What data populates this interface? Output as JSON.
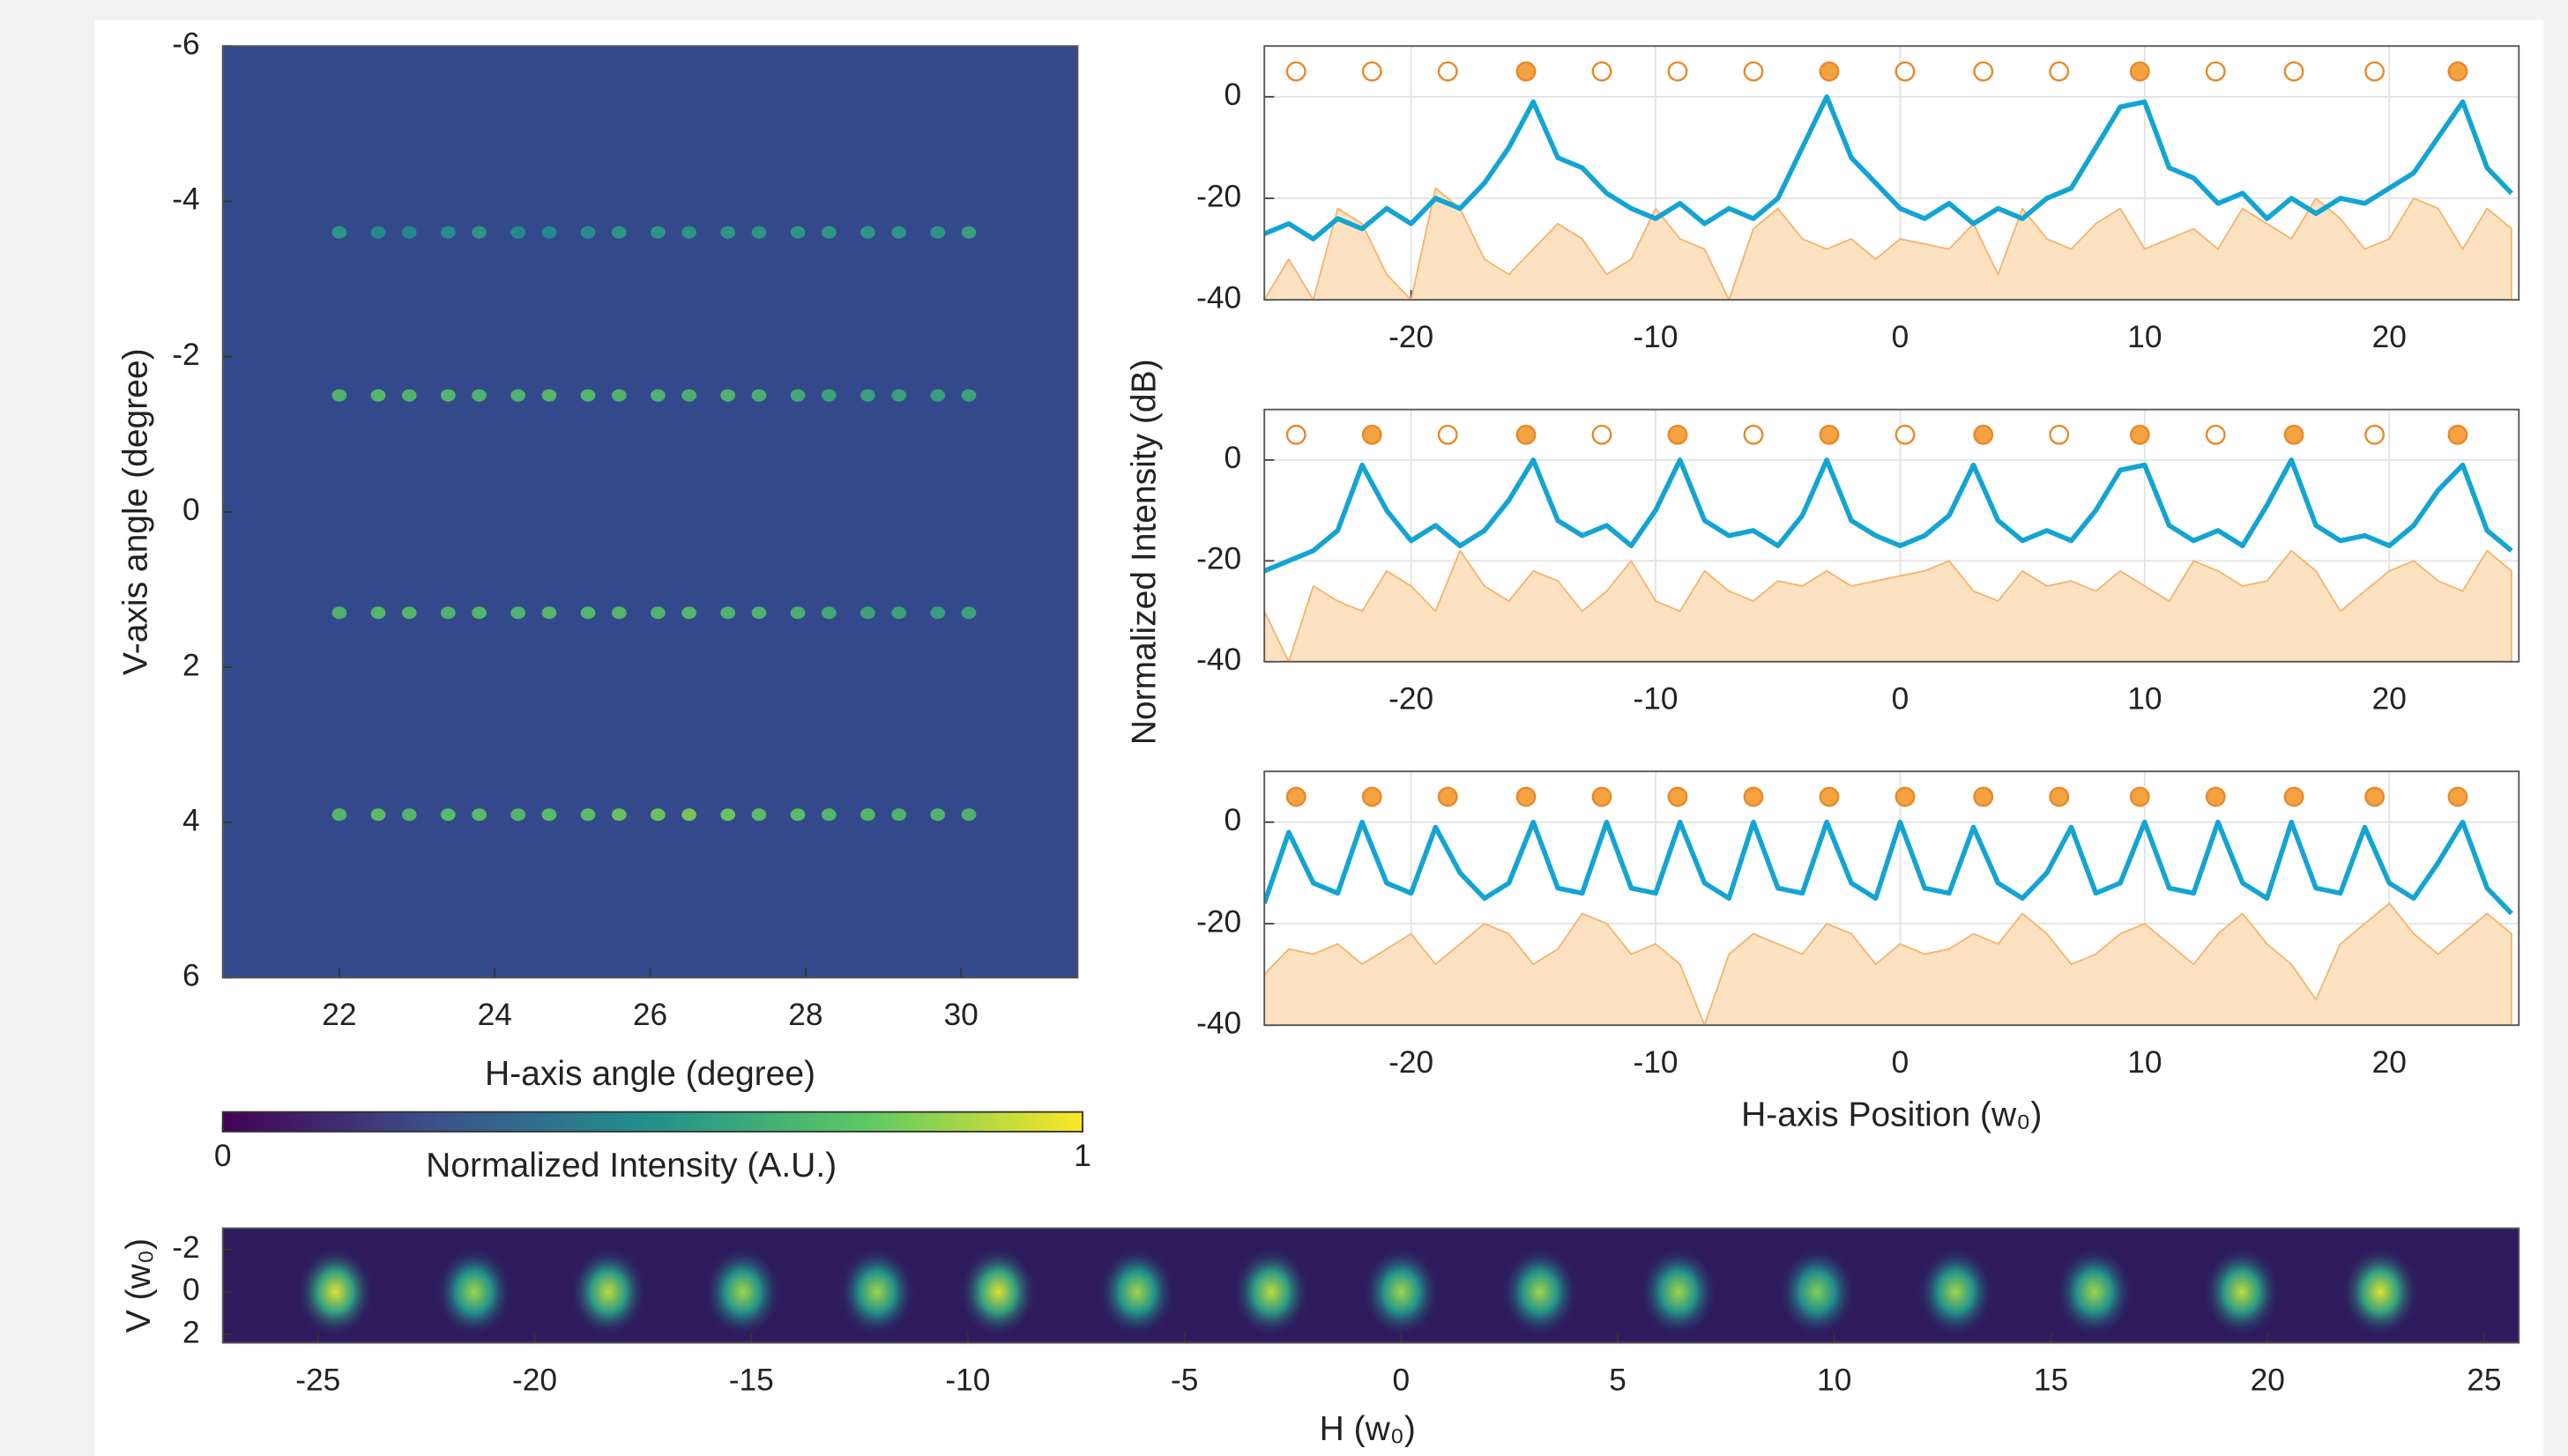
{
  "chart_data": [
    {
      "type": "heatmap",
      "xlabel": "H-axis angle (degree)",
      "ylabel": "V-axis angle (degree)",
      "xlim": [
        20.5,
        31.5
      ],
      "ylim": [
        -6,
        6
      ],
      "y_reversed": true,
      "xticks": [
        22,
        24,
        26,
        28,
        30
      ],
      "yticks": [
        -6,
        -4,
        -2,
        0,
        2,
        4,
        6
      ],
      "background": "#34498b",
      "colormap": "viridis",
      "columns": [
        22.0,
        22.5,
        22.9,
        23.4,
        23.8,
        24.3,
        24.7,
        25.2,
        25.6,
        26.1,
        26.5,
        27.0,
        27.4,
        27.9,
        28.3,
        28.8,
        29.2,
        29.7,
        30.1
      ],
      "rows": [
        -3.6,
        -1.5,
        1.3,
        3.9
      ],
      "values": [
        [
          0.55,
          0.5,
          0.5,
          0.52,
          0.55,
          0.5,
          0.5,
          0.52,
          0.55,
          0.55,
          0.55,
          0.56,
          0.55,
          0.55,
          0.56,
          0.55,
          0.55,
          0.55,
          0.6
        ],
        [
          0.7,
          0.72,
          0.7,
          0.72,
          0.7,
          0.7,
          0.72,
          0.72,
          0.7,
          0.7,
          0.68,
          0.7,
          0.68,
          0.65,
          0.62,
          0.6,
          0.6,
          0.6,
          0.62
        ],
        [
          0.7,
          0.72,
          0.72,
          0.7,
          0.72,
          0.7,
          0.72,
          0.72,
          0.72,
          0.7,
          0.72,
          0.7,
          0.7,
          0.68,
          0.65,
          0.62,
          0.62,
          0.6,
          0.62
        ],
        [
          0.72,
          0.75,
          0.72,
          0.75,
          0.75,
          0.72,
          0.75,
          0.75,
          0.78,
          0.78,
          0.8,
          0.78,
          0.75,
          0.75,
          0.72,
          0.72,
          0.7,
          0.7,
          0.7
        ]
      ]
    },
    {
      "type": "colorbar",
      "title": "Normalized Intensity (A.U.)",
      "colormap": "viridis",
      "xlim": [
        0,
        1
      ],
      "xticks": [
        0,
        1
      ]
    },
    {
      "type": "line",
      "xlim": [
        -26,
        25.3
      ],
      "ylim": [
        -40,
        10
      ],
      "xticks": [
        -20,
        -10,
        0,
        10,
        20
      ],
      "yticks": [
        -40,
        -20,
        0
      ],
      "grid": true,
      "x": [
        -26,
        -25,
        -24,
        -23,
        -22,
        -21,
        -20,
        -19,
        -18,
        -17,
        -16,
        -15,
        -14,
        -13,
        -12,
        -11,
        -10,
        -9,
        -8,
        -7,
        -6,
        -5,
        -4,
        -3,
        -2,
        -1,
        0,
        1,
        2,
        3,
        4,
        5,
        6,
        7,
        8,
        9,
        10,
        11,
        12,
        13,
        14,
        15,
        16,
        17,
        18,
        19,
        20,
        21,
        22,
        23,
        24,
        25
      ],
      "series": [
        {
          "color": "#f6b46e",
          "fill": "#fde2c2",
          "values": [
            -40,
            -32,
            -40,
            -22,
            -25,
            -35,
            -40,
            -18,
            -22,
            -32,
            -35,
            -30,
            -25,
            -28,
            -35,
            -32,
            -22,
            -28,
            -30,
            -40,
            -26,
            -22,
            -28,
            -30,
            -28,
            -32,
            -28,
            -29,
            -30,
            -25,
            -35,
            -22,
            -28,
            -30,
            -25,
            -22,
            -30,
            -28,
            -26,
            -30,
            -22,
            -25,
            -28,
            -20,
            -24,
            -30,
            -28,
            -20,
            -22,
            -30,
            -22,
            -26
          ]
        },
        {
          "color": "#13a4d4",
          "values": [
            -27,
            -25,
            -28,
            -24,
            -26,
            -22,
            -25,
            -20,
            -22,
            -17,
            -10,
            -1,
            -12,
            -14,
            -19,
            -22,
            -24,
            -21,
            -25,
            -22,
            -24,
            -20,
            -10,
            0,
            -12,
            -17,
            -22,
            -24,
            -21,
            -25,
            -22,
            -24,
            -20,
            -18,
            -10,
            -2,
            -1,
            -14,
            -16,
            -21,
            -19,
            -24,
            -20,
            -23,
            -20,
            -21,
            -18,
            -15,
            -8,
            -1,
            -14,
            -19
          ]
        }
      ],
      "markers": {
        "color": "#f5a340",
        "y": 5,
        "filled_x": [
          -15.3,
          -2.9,
          9.8,
          22.8
        ],
        "open_x": [
          -24.7,
          -21.6,
          -18.5,
          -12.2,
          -9.1,
          -6.0,
          0.2,
          3.4,
          6.5,
          12.9,
          16.1,
          19.4
        ]
      }
    },
    {
      "type": "line",
      "ylabel": "Normalized Intensity (dB)",
      "xlim": [
        -26,
        25.3
      ],
      "ylim": [
        -40,
        10
      ],
      "xticks": [
        -20,
        -10,
        0,
        10,
        20
      ],
      "yticks": [
        -40,
        -20,
        0
      ],
      "grid": true,
      "x": [
        -26,
        -25,
        -24,
        -23,
        -22,
        -21,
        -20,
        -19,
        -18,
        -17,
        -16,
        -15,
        -14,
        -13,
        -12,
        -11,
        -10,
        -9,
        -8,
        -7,
        -6,
        -5,
        -4,
        -3,
        -2,
        -1,
        0,
        1,
        2,
        3,
        4,
        5,
        6,
        7,
        8,
        9,
        10,
        11,
        12,
        13,
        14,
        15,
        16,
        17,
        18,
        19,
        20,
        21,
        22,
        23,
        24,
        25
      ],
      "series": [
        {
          "color": "#f6b46e",
          "fill": "#fde2c2",
          "values": [
            -30,
            -40,
            -25,
            -28,
            -30,
            -22,
            -25,
            -30,
            -18,
            -25,
            -28,
            -22,
            -24,
            -30,
            -26,
            -20,
            -28,
            -30,
            -22,
            -26,
            -28,
            -24,
            -25,
            -22,
            -25,
            -24,
            -23,
            -22,
            -20,
            -26,
            -28,
            -22,
            -25,
            -24,
            -26,
            -22,
            -25,
            -28,
            -20,
            -22,
            -25,
            -24,
            -18,
            -22,
            -30,
            -26,
            -22,
            -20,
            -24,
            -26,
            -18,
            -22
          ]
        },
        {
          "color": "#13a4d4",
          "values": [
            -22,
            -20,
            -18,
            -14,
            -1,
            -10,
            -16,
            -13,
            -17,
            -14,
            -8,
            0,
            -12,
            -15,
            -13,
            -17,
            -10,
            0,
            -12,
            -15,
            -14,
            -17,
            -11,
            0,
            -12,
            -15,
            -17,
            -15,
            -11,
            -1,
            -12,
            -16,
            -14,
            -16,
            -10,
            -2,
            -1,
            -13,
            -16,
            -14,
            -17,
            -9,
            0,
            -13,
            -16,
            -15,
            -17,
            -13,
            -6,
            -1,
            -14,
            -18
          ]
        }
      ],
      "markers": {
        "color": "#f5a340",
        "y": 5,
        "filled_x": [
          -21.6,
          -15.3,
          -9.1,
          -2.9,
          3.4,
          9.8,
          16.1,
          22.8
        ],
        "open_x": [
          -24.7,
          -18.5,
          -12.2,
          -6.0,
          0.2,
          6.5,
          12.9,
          19.4
        ]
      }
    },
    {
      "type": "line",
      "xlabel": "H-axis Position (w₀)",
      "xlim": [
        -26,
        25.3
      ],
      "ylim": [
        -40,
        10
      ],
      "xticks": [
        -20,
        -10,
        0,
        10,
        20
      ],
      "yticks": [
        -40,
        -20,
        0
      ],
      "grid": true,
      "x": [
        -26,
        -25,
        -24,
        -23,
        -22,
        -21,
        -20,
        -19,
        -18,
        -17,
        -16,
        -15,
        -14,
        -13,
        -12,
        -11,
        -10,
        -9,
        -8,
        -7,
        -6,
        -5,
        -4,
        -3,
        -2,
        -1,
        0,
        1,
        2,
        3,
        4,
        5,
        6,
        7,
        8,
        9,
        10,
        11,
        12,
        13,
        14,
        15,
        16,
        17,
        18,
        19,
        20,
        21,
        22,
        23,
        24,
        25
      ],
      "series": [
        {
          "color": "#f6b46e",
          "fill": "#fde2c2",
          "values": [
            -30,
            -25,
            -26,
            -24,
            -28,
            -25,
            -22,
            -28,
            -24,
            -20,
            -22,
            -28,
            -25,
            -18,
            -20,
            -26,
            -24,
            -28,
            -40,
            -26,
            -22,
            -24,
            -26,
            -20,
            -22,
            -28,
            -24,
            -26,
            -25,
            -22,
            -24,
            -18,
            -22,
            -28,
            -26,
            -22,
            -20,
            -24,
            -28,
            -22,
            -18,
            -24,
            -28,
            -35,
            -24,
            -20,
            -16,
            -22,
            -26,
            -22,
            -18,
            -22
          ]
        },
        {
          "color": "#13a4d4",
          "values": [
            -16,
            -2,
            -12,
            -14,
            0,
            -12,
            -14,
            -1,
            -10,
            -15,
            -12,
            0,
            -13,
            -14,
            0,
            -13,
            -14,
            0,
            -12,
            -15,
            0,
            -13,
            -14,
            0,
            -12,
            -15,
            0,
            -13,
            -14,
            -1,
            -12,
            -15,
            -10,
            -1,
            -14,
            -12,
            0,
            -13,
            -14,
            0,
            -12,
            -15,
            0,
            -13,
            -14,
            -1,
            -12,
            -15,
            -8,
            0,
            -13,
            -18
          ]
        }
      ],
      "markers": {
        "color": "#f5a340",
        "y": 5,
        "filled_x": [
          -24.7,
          -21.6,
          -18.5,
          -15.3,
          -12.2,
          -9.1,
          -6.0,
          -2.9,
          0.2,
          3.4,
          6.5,
          9.8,
          12.9,
          16.1,
          19.4,
          22.8
        ]
      }
    },
    {
      "type": "image",
      "xlabel": "H (w₀)",
      "ylabel": "V (w₀)",
      "xlim": [
        -27.2,
        25.8
      ],
      "ylim": [
        -3,
        2.4
      ],
      "y_reversed": true,
      "xticks": [
        -25,
        -20,
        -15,
        -10,
        -5,
        0,
        5,
        10,
        15,
        20,
        25
      ],
      "yticks": [
        -2,
        0,
        2
      ],
      "background": "#2d1b5e",
      "colormap": "viridis",
      "spots_x": [
        -24.6,
        -21.4,
        -18.3,
        -15.2,
        -12.1,
        -9.3,
        -6.1,
        -3.0,
        0.0,
        3.2,
        6.4,
        9.6,
        12.8,
        16.0,
        19.4,
        22.6
      ],
      "spots_y": [
        0,
        0,
        0,
        0,
        0,
        0,
        0,
        0,
        0,
        0,
        0,
        0,
        0,
        0,
        0,
        0
      ],
      "values": [
        0.95,
        0.85,
        0.9,
        0.85,
        0.85,
        0.95,
        0.85,
        0.9,
        0.85,
        0.85,
        0.85,
        0.8,
        0.85,
        0.85,
        0.9,
        0.95
      ]
    }
  ]
}
